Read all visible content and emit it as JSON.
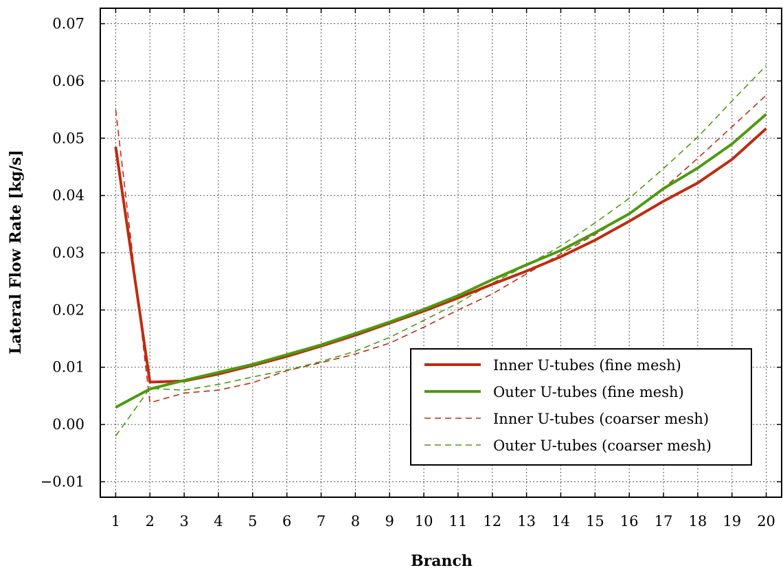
{
  "chart_data": {
    "type": "line",
    "title": "",
    "xlabel": "Branch",
    "ylabel": "Lateral Flow Rate [kg/s]",
    "x": [
      1,
      2,
      3,
      4,
      5,
      6,
      7,
      8,
      9,
      10,
      11,
      12,
      13,
      14,
      15,
      16,
      17,
      18,
      19,
      20
    ],
    "xlim": [
      0.55,
      20.45
    ],
    "ylim": [
      -0.0127,
      0.0727
    ],
    "yticks": [
      -0.01,
      0.0,
      0.01,
      0.02,
      0.03,
      0.04,
      0.05,
      0.06,
      0.07
    ],
    "ytick_labels": [
      "−0.01",
      "0.00",
      "0.01",
      "0.02",
      "0.03",
      "0.04",
      "0.05",
      "0.06",
      "0.07"
    ],
    "xtick_labels": [
      "1",
      "2",
      "3",
      "4",
      "5",
      "6",
      "7",
      "8",
      "9",
      "10",
      "11",
      "12",
      "13",
      "14",
      "15",
      "16",
      "17",
      "18",
      "19",
      "20"
    ],
    "grid": true,
    "legend_position": "lower-right",
    "series": [
      {
        "name": "Inner U-tubes (fine mesh)",
        "color": "#bf2b10",
        "style": "solid",
        "values": [
          0.0485,
          0.0074,
          0.0076,
          0.0088,
          0.0103,
          0.0119,
          0.0137,
          0.0156,
          0.0177,
          0.0198,
          0.0221,
          0.0245,
          0.0268,
          0.0293,
          0.0322,
          0.0355,
          0.039,
          0.0422,
          0.0463,
          0.0517
        ]
      },
      {
        "name": "Outer U-tubes (fine mesh)",
        "color": "#4c9a10",
        "style": "solid",
        "values": [
          0.003,
          0.0062,
          0.0077,
          0.0091,
          0.0105,
          0.0122,
          0.0139,
          0.0159,
          0.0179,
          0.0201,
          0.0225,
          0.0253,
          0.0279,
          0.0304,
          0.0335,
          0.0368,
          0.0412,
          0.0448,
          0.049,
          0.0542
        ]
      },
      {
        "name": "Inner U-tubes (coarser mesh)",
        "color": "#bf2b10",
        "style": "dashed",
        "values": [
          0.055,
          0.0038,
          0.0055,
          0.006,
          0.0073,
          0.0094,
          0.0108,
          0.0123,
          0.0142,
          0.017,
          0.02,
          0.0228,
          0.0263,
          0.0298,
          0.0332,
          0.0368,
          0.0412,
          0.0465,
          0.052,
          0.0575
        ]
      },
      {
        "name": "Outer U-tubes (coarser mesh)",
        "color": "#4c9a10",
        "style": "dashed",
        "values": [
          -0.002,
          0.0063,
          0.006,
          0.007,
          0.0083,
          0.0095,
          0.011,
          0.0128,
          0.0152,
          0.0182,
          0.0212,
          0.0247,
          0.0278,
          0.0312,
          0.0352,
          0.0395,
          0.0447,
          0.0502,
          0.0565,
          0.0627
        ]
      }
    ]
  }
}
